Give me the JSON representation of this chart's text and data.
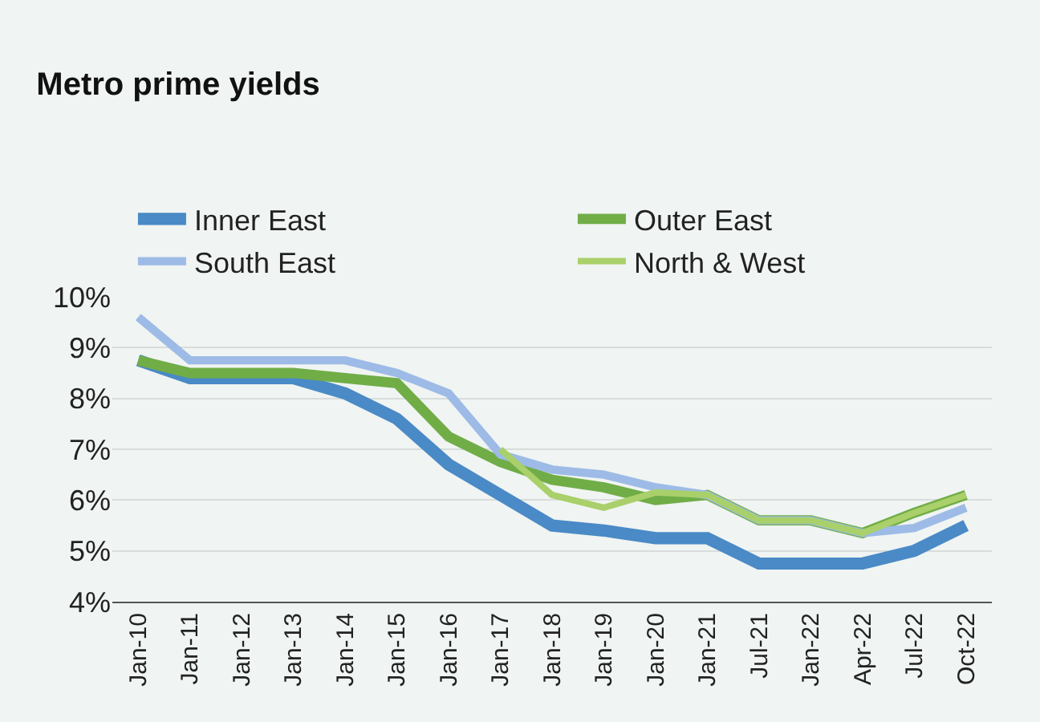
{
  "chart_data": {
    "type": "line",
    "title": "Metro prime yields",
    "categories": [
      "Jan-10",
      "Jan-11",
      "Jan-12",
      "Jan-13",
      "Jan-14",
      "Jan-15",
      "Jan-16",
      "Jan-17",
      "Jan-18",
      "Jan-19",
      "Jan-20",
      "Jan-21",
      "Jul-21",
      "Jan-22",
      "Apr-22",
      "Jul-22",
      "Oct-22"
    ],
    "series": [
      {
        "name": "Inner East",
        "color": "#4a8ac6",
        "values": [
          8.75,
          8.4,
          8.4,
          8.4,
          8.1,
          7.6,
          6.7,
          6.1,
          5.5,
          5.4,
          5.25,
          5.25,
          4.75,
          4.75,
          4.75,
          5.0,
          5.5
        ]
      },
      {
        "name": "Outer East",
        "color": "#70ad47",
        "values": [
          8.75,
          8.5,
          8.5,
          8.5,
          8.4,
          8.3,
          7.25,
          6.75,
          6.4,
          6.25,
          6.0,
          6.1,
          5.6,
          5.6,
          5.35,
          5.75,
          6.1
        ]
      },
      {
        "name": "South East",
        "color": "#9dbbe6",
        "values": [
          9.6,
          8.75,
          8.75,
          8.75,
          8.75,
          8.5,
          8.1,
          6.9,
          6.6,
          6.5,
          6.25,
          6.1,
          5.6,
          5.6,
          5.35,
          5.45,
          5.85
        ]
      },
      {
        "name": "North & West",
        "color": "#a9d06a",
        "values": [
          null,
          null,
          null,
          null,
          null,
          null,
          null,
          7.0,
          6.1,
          5.85,
          6.15,
          6.1,
          5.6,
          5.6,
          5.35,
          5.75,
          6.1
        ]
      }
    ],
    "ylim": [
      4,
      10
    ],
    "yticks": [
      {
        "value": 4,
        "label": "4%"
      },
      {
        "value": 5,
        "label": "5%"
      },
      {
        "value": 6,
        "label": "6%"
      },
      {
        "value": 7,
        "label": "7%"
      },
      {
        "value": 8,
        "label": "8%"
      },
      {
        "value": 9,
        "label": "9%"
      },
      {
        "value": 10,
        "label": "10%"
      }
    ],
    "grid": "y",
    "legend": "top",
    "marker": "none",
    "line_style": "solid"
  }
}
